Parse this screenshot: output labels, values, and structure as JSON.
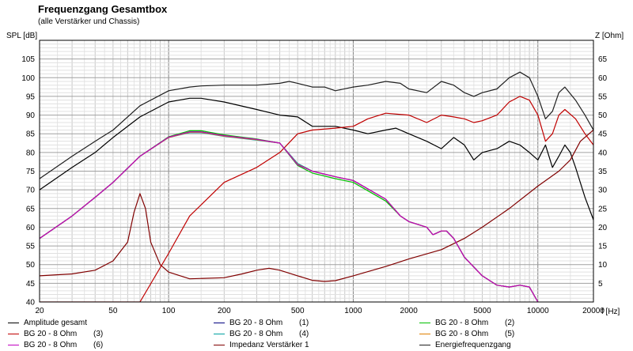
{
  "chart_data": {
    "type": "line",
    "title": "Frequenzgang Gesamtbox",
    "subtitle": "(alle Verstärker und Chassis)",
    "ylabel_left": "SPL [dB]",
    "ylabel_right": "Z [Ohm]",
    "xlabel": "f [Hz]",
    "x_scale": "log",
    "xlim": [
      20,
      20000
    ],
    "ylim_left": [
      40,
      110
    ],
    "ylim_right": [
      0,
      70
    ],
    "x_ticks": [
      "20",
      "50",
      "100",
      "200",
      "500",
      "1000",
      "2000",
      "5000",
      "10000",
      "20000"
    ],
    "x_tick_values": [
      20,
      50,
      100,
      200,
      500,
      1000,
      2000,
      5000,
      10000,
      20000
    ],
    "y_ticks_left": [
      "40",
      "45",
      "50",
      "55",
      "60",
      "65",
      "70",
      "75",
      "80",
      "85",
      "90",
      "95",
      "100",
      "105"
    ],
    "y_ticks_right": [
      "5",
      "10",
      "15",
      "20",
      "25",
      "30",
      "35",
      "40",
      "45",
      "50",
      "55",
      "60",
      "65"
    ],
    "grid": true,
    "legend_position": "bottom",
    "series": [
      {
        "name": "Amplitude gesamt",
        "number": "",
        "color": "#000000",
        "axis": "left",
        "points": [
          [
            20,
            70
          ],
          [
            30,
            76
          ],
          [
            40,
            80
          ],
          [
            50,
            84
          ],
          [
            70,
            89.5
          ],
          [
            100,
            93.5
          ],
          [
            130,
            94.5
          ],
          [
            150,
            94.5
          ],
          [
            200,
            93.5
          ],
          [
            300,
            91.5
          ],
          [
            400,
            90
          ],
          [
            500,
            89.5
          ],
          [
            600,
            87
          ],
          [
            800,
            87
          ],
          [
            1000,
            86
          ],
          [
            1200,
            85
          ],
          [
            1500,
            86
          ],
          [
            1700,
            86.5
          ],
          [
            2000,
            85
          ],
          [
            2500,
            83
          ],
          [
            3000,
            81
          ],
          [
            3500,
            84
          ],
          [
            4000,
            82
          ],
          [
            4500,
            78
          ],
          [
            5000,
            80
          ],
          [
            6000,
            81
          ],
          [
            7000,
            83
          ],
          [
            8000,
            82
          ],
          [
            9000,
            80
          ],
          [
            10000,
            78
          ],
          [
            11000,
            82
          ],
          [
            12000,
            76
          ],
          [
            13000,
            79
          ],
          [
            14000,
            82
          ],
          [
            15000,
            80
          ],
          [
            16000,
            76
          ],
          [
            18000,
            68
          ],
          [
            20000,
            62
          ]
        ]
      },
      {
        "name": "BG 20 - 8 Ohm",
        "number": "(1)",
        "color": "#000080",
        "axis": "left",
        "points": [
          [
            20,
            57
          ],
          [
            30,
            63
          ],
          [
            40,
            68
          ],
          [
            50,
            72
          ],
          [
            70,
            79
          ],
          [
            100,
            84
          ],
          [
            130,
            85.5
          ],
          [
            150,
            85.5
          ],
          [
            200,
            84.5
          ],
          [
            300,
            83.5
          ],
          [
            400,
            82.5
          ],
          [
            500,
            77
          ],
          [
            600,
            75
          ],
          [
            800,
            73.5
          ],
          [
            1000,
            72.5
          ],
          [
            1500,
            67.5
          ],
          [
            1800,
            63
          ],
          [
            2000,
            61.5
          ],
          [
            2500,
            60
          ],
          [
            2700,
            58
          ],
          [
            3000,
            59
          ],
          [
            3200,
            59
          ],
          [
            3500,
            57
          ],
          [
            4000,
            52
          ],
          [
            5000,
            47
          ],
          [
            6000,
            44.5
          ],
          [
            7000,
            44
          ],
          [
            8000,
            44.5
          ],
          [
            9000,
            44
          ],
          [
            10000,
            40
          ]
        ]
      },
      {
        "name": "BG 20 - 8 Ohm",
        "number": "(2)",
        "color": "#00c000",
        "axis": "left",
        "points": [
          [
            20,
            57
          ],
          [
            30,
            63
          ],
          [
            40,
            68
          ],
          [
            50,
            72
          ],
          [
            70,
            79
          ],
          [
            100,
            84.2
          ],
          [
            130,
            85.8
          ],
          [
            150,
            85.8
          ],
          [
            200,
            84.7
          ],
          [
            300,
            83.6
          ],
          [
            400,
            82.5
          ],
          [
            500,
            76.5
          ],
          [
            600,
            74.5
          ],
          [
            800,
            73
          ],
          [
            1000,
            72
          ],
          [
            1500,
            67
          ],
          [
            1800,
            63
          ],
          [
            2000,
            61.5
          ],
          [
            2500,
            60
          ],
          [
            2700,
            58
          ],
          [
            3000,
            59
          ],
          [
            3200,
            59
          ],
          [
            3500,
            57
          ],
          [
            4000,
            52
          ],
          [
            5000,
            47
          ],
          [
            6000,
            44.5
          ],
          [
            7000,
            44
          ],
          [
            8000,
            44.5
          ],
          [
            9000,
            44
          ],
          [
            10000,
            40
          ]
        ]
      },
      {
        "name": "BG 20 - 8 Ohm",
        "number": "(3)",
        "color": "#c00000",
        "axis": "left",
        "points": [
          [
            20,
            40
          ],
          [
            70,
            40
          ],
          [
            100,
            53
          ],
          [
            130,
            63
          ],
          [
            200,
            72
          ],
          [
            300,
            76
          ],
          [
            400,
            80
          ],
          [
            500,
            85
          ],
          [
            600,
            86
          ],
          [
            800,
            86.5
          ],
          [
            1000,
            87
          ],
          [
            1200,
            89
          ],
          [
            1500,
            90.5
          ],
          [
            2000,
            90
          ],
          [
            2500,
            88
          ],
          [
            3000,
            90
          ],
          [
            3500,
            89.5
          ],
          [
            4000,
            89
          ],
          [
            4500,
            88
          ],
          [
            5000,
            88.5
          ],
          [
            6000,
            90
          ],
          [
            7000,
            93.5
          ],
          [
            8000,
            95
          ],
          [
            9000,
            94
          ],
          [
            10000,
            90
          ],
          [
            11000,
            83
          ],
          [
            12000,
            85
          ],
          [
            13000,
            90
          ],
          [
            14000,
            91.5
          ],
          [
            16000,
            89
          ],
          [
            18000,
            85
          ],
          [
            20000,
            82
          ]
        ]
      },
      {
        "name": "BG 20 - 8 Ohm",
        "number": "(4)",
        "color": "#00a0a0",
        "axis": "left",
        "points": [
          [
            20,
            57
          ],
          [
            30,
            63
          ],
          [
            40,
            68
          ],
          [
            50,
            72
          ],
          [
            70,
            79
          ],
          [
            100,
            84
          ],
          [
            130,
            85.3
          ],
          [
            150,
            85.3
          ],
          [
            200,
            84.3
          ],
          [
            300,
            83.3
          ],
          [
            400,
            82.5
          ],
          [
            500,
            77
          ],
          [
            600,
            75
          ],
          [
            800,
            73.5
          ],
          [
            1000,
            72.5
          ],
          [
            1500,
            67.5
          ],
          [
            1800,
            63
          ],
          [
            2000,
            61.5
          ],
          [
            2500,
            60
          ],
          [
            2700,
            58
          ],
          [
            3000,
            59
          ],
          [
            3200,
            59
          ],
          [
            3500,
            57
          ],
          [
            4000,
            52
          ],
          [
            5000,
            47
          ],
          [
            6000,
            44.5
          ],
          [
            7000,
            44
          ],
          [
            8000,
            44.5
          ],
          [
            9000,
            44
          ],
          [
            10000,
            40
          ]
        ]
      },
      {
        "name": "BG 20 - 8 Ohm",
        "number": "(5)",
        "color": "#e08000",
        "axis": "left",
        "points": [
          [
            20,
            57
          ],
          [
            30,
            63
          ],
          [
            40,
            68
          ],
          [
            50,
            72
          ],
          [
            70,
            79
          ],
          [
            100,
            84
          ],
          [
            130,
            85.4
          ],
          [
            150,
            85.4
          ],
          [
            200,
            84.4
          ],
          [
            300,
            83.4
          ],
          [
            400,
            82.5
          ],
          [
            500,
            76.8
          ],
          [
            600,
            75
          ],
          [
            800,
            73.5
          ],
          [
            1000,
            72.5
          ],
          [
            1500,
            67.5
          ],
          [
            1800,
            63
          ],
          [
            2000,
            61.5
          ],
          [
            2500,
            60
          ],
          [
            2700,
            58
          ],
          [
            3000,
            59
          ],
          [
            3200,
            59
          ],
          [
            3500,
            57
          ],
          [
            4000,
            52
          ],
          [
            5000,
            47
          ],
          [
            6000,
            44.5
          ],
          [
            7000,
            44
          ],
          [
            8000,
            44.5
          ],
          [
            9000,
            44
          ],
          [
            10000,
            40
          ]
        ]
      },
      {
        "name": "BG 20 - 8 Ohm",
        "number": "(6)",
        "color": "#c000c0",
        "axis": "left",
        "points": [
          [
            20,
            57
          ],
          [
            30,
            63
          ],
          [
            40,
            68
          ],
          [
            50,
            72
          ],
          [
            70,
            79
          ],
          [
            100,
            84.1
          ],
          [
            130,
            85.5
          ],
          [
            150,
            85.5
          ],
          [
            200,
            84.5
          ],
          [
            300,
            83.5
          ],
          [
            400,
            82.5
          ],
          [
            500,
            76.7
          ],
          [
            600,
            75
          ],
          [
            800,
            73.5
          ],
          [
            1000,
            72.5
          ],
          [
            1500,
            67.5
          ],
          [
            1800,
            63
          ],
          [
            2000,
            61.5
          ],
          [
            2500,
            60
          ],
          [
            2700,
            58
          ],
          [
            3000,
            59
          ],
          [
            3200,
            59
          ],
          [
            3500,
            57
          ],
          [
            4000,
            52
          ],
          [
            5000,
            47
          ],
          [
            6000,
            44.5
          ],
          [
            7000,
            44
          ],
          [
            8000,
            44.5
          ],
          [
            9000,
            44
          ],
          [
            10000,
            40
          ]
        ]
      },
      {
        "name": "Impedanz Verstärker 1",
        "number": "",
        "color": "#800000",
        "axis": "right",
        "points": [
          [
            20,
            7
          ],
          [
            30,
            7.5
          ],
          [
            40,
            8.5
          ],
          [
            50,
            11
          ],
          [
            60,
            16
          ],
          [
            65,
            24
          ],
          [
            70,
            29
          ],
          [
            75,
            25
          ],
          [
            80,
            16
          ],
          [
            90,
            10
          ],
          [
            100,
            8
          ],
          [
            130,
            6.2
          ],
          [
            200,
            6.5
          ],
          [
            250,
            7.5
          ],
          [
            300,
            8.5
          ],
          [
            350,
            9
          ],
          [
            400,
            8.5
          ],
          [
            500,
            7
          ],
          [
            600,
            5.8
          ],
          [
            700,
            5.5
          ],
          [
            800,
            5.7
          ],
          [
            1000,
            7
          ],
          [
            1500,
            9.5
          ],
          [
            2000,
            11.5
          ],
          [
            3000,
            14
          ],
          [
            4000,
            17
          ],
          [
            5000,
            20
          ],
          [
            7000,
            25
          ],
          [
            10000,
            31
          ],
          [
            13000,
            35
          ],
          [
            15000,
            38
          ],
          [
            17000,
            43
          ],
          [
            20000,
            46
          ]
        ]
      },
      {
        "name": "Energiefrequenzgang",
        "number": "",
        "color": "#202020",
        "axis": "left",
        "points": [
          [
            20,
            73
          ],
          [
            30,
            79
          ],
          [
            40,
            83
          ],
          [
            50,
            86
          ],
          [
            70,
            92.5
          ],
          [
            100,
            96.5
          ],
          [
            130,
            97.5
          ],
          [
            150,
            97.8
          ],
          [
            200,
            98
          ],
          [
            300,
            98
          ],
          [
            400,
            98.5
          ],
          [
            450,
            99
          ],
          [
            500,
            98.5
          ],
          [
            600,
            97.5
          ],
          [
            700,
            97.5
          ],
          [
            800,
            96.5
          ],
          [
            1000,
            97.5
          ],
          [
            1200,
            98
          ],
          [
            1500,
            99
          ],
          [
            1800,
            98.5
          ],
          [
            2000,
            97
          ],
          [
            2500,
            96
          ],
          [
            3000,
            99
          ],
          [
            3500,
            98
          ],
          [
            4000,
            96
          ],
          [
            4500,
            95
          ],
          [
            5000,
            96
          ],
          [
            6000,
            97
          ],
          [
            7000,
            100
          ],
          [
            8000,
            101.5
          ],
          [
            9000,
            100
          ],
          [
            10000,
            95
          ],
          [
            11000,
            89
          ],
          [
            12000,
            91
          ],
          [
            13000,
            96
          ],
          [
            14000,
            97.5
          ],
          [
            16000,
            94
          ],
          [
            18000,
            90
          ],
          [
            20000,
            86
          ]
        ]
      }
    ]
  }
}
